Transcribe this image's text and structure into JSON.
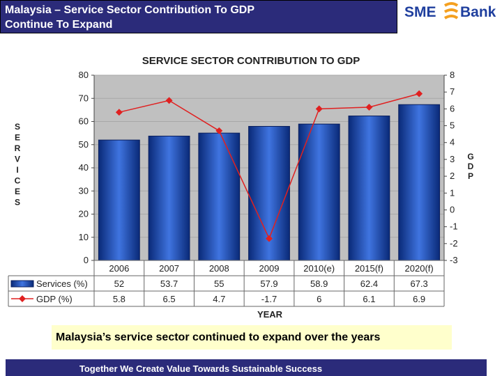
{
  "header": {
    "title_line1": "Malaysia – Service Sector Contribution To GDP",
    "title_line2": "Continue To Expand"
  },
  "logo": {
    "brand": "SME",
    "bank": "Bank",
    "mark_color": "#f4a020",
    "text_color": "#1f3f9e"
  },
  "chart_data": {
    "type": "bar",
    "title": "SERVICE SECTOR CONTRIBUTION TO GDP",
    "categories": [
      "2006",
      "2007",
      "2008",
      "2009",
      "2010(e)",
      "2015(f)",
      "2020(f)"
    ],
    "series": [
      {
        "name": "Services (%)",
        "type": "bar",
        "axis": "left",
        "values": [
          52,
          53.7,
          55,
          57.9,
          58.9,
          62.4,
          67.3
        ],
        "display": [
          "52",
          "53.7",
          "55",
          "57.9",
          "58.9",
          "62.4",
          "67.3"
        ],
        "color": "#1f4fb5"
      },
      {
        "name": "GDP (%)",
        "type": "line",
        "axis": "right",
        "values": [
          5.8,
          6.5,
          4.7,
          -1.7,
          6,
          6.1,
          6.9
        ],
        "display": [
          "5.8",
          "6.5",
          "4.7",
          "-1.7",
          "6",
          "6.1",
          "6.9"
        ],
        "color": "#e02020"
      }
    ],
    "ylabel_left": "SERVICES",
    "ylabel_right": "GDP",
    "xlabel": "YEAR",
    "ylim_left": [
      0,
      80
    ],
    "ylim_right": [
      -3,
      8
    ],
    "yticks_left": [
      0,
      10,
      20,
      30,
      40,
      50,
      60,
      70,
      80
    ],
    "yticks_right": [
      -3,
      -2,
      -1,
      0,
      1,
      2,
      3,
      4,
      5,
      6,
      7,
      8
    ],
    "plot_background": "#c0c0c0"
  },
  "caption": "Malaysia’s service sector continued to expand over the years",
  "footer": "Together We Create Value Towards Sustainable Success"
}
